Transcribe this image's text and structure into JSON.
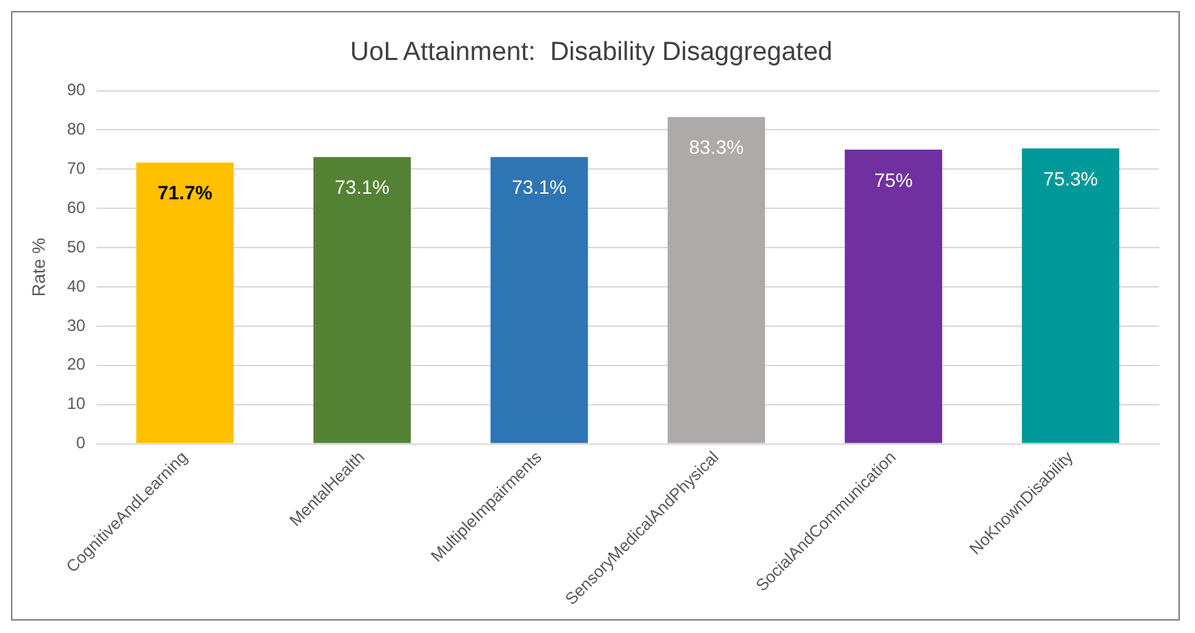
{
  "chart_data": {
    "type": "bar",
    "title": "UoL Attainment:  Disability Disaggregated",
    "ylabel": "Rate %",
    "categories": [
      "CognitiveAndLearning",
      "MentalHealth",
      "MultipleImpairments",
      "SensoryMedicalAndPhysical",
      "SocialAndCommunication",
      "NoKnownDisability"
    ],
    "values": [
      71.7,
      73.1,
      73.1,
      83.3,
      75,
      75.3
    ],
    "colors": [
      "#ffc000",
      "#548235",
      "#2e75b6",
      "#aeaaaa",
      "#7030a0",
      "#009999"
    ],
    "value_labels": [
      "71.7%",
      "73.1%",
      "73.1%",
      "83.3%",
      "75%",
      "75.3%"
    ],
    "ylim": [
      0,
      90
    ],
    "yticks": [
      0,
      10,
      20,
      30,
      40,
      50,
      60,
      70,
      80,
      90
    ],
    "grid": "y",
    "legend": false
  }
}
